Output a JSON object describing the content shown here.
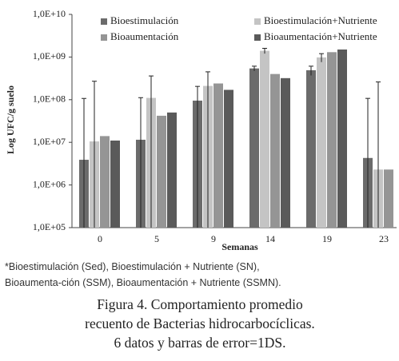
{
  "chart_data": {
    "type": "bar",
    "log_scale": true,
    "y_label": "Log UFC/g suelo",
    "x_label": "Semanas",
    "categories": [
      "0",
      "5",
      "9",
      "14",
      "19",
      "23"
    ],
    "series": [
      {
        "name": "Bioestimulación",
        "color": "#6b6b6b",
        "values": [
          3900000,
          11500000,
          95000000,
          540000000,
          490000000,
          4300000
        ],
        "errors": [
          103000000,
          100000000,
          110000000,
          70000000,
          120000000,
          103000000
        ]
      },
      {
        "name": "Bioestimulación+Nutriente",
        "color": "#c4c4c4",
        "values": [
          10500000,
          110000000,
          210000000,
          1400000000,
          980000000,
          2300000
        ],
        "errors": [
          260000000,
          250000000,
          240000000,
          200000000,
          220000000,
          258000000
        ]
      },
      {
        "name": "Bioaumentación",
        "color": "#959595",
        "values": [
          14000000,
          42000000,
          240000000,
          400000000,
          1300000000,
          2300000
        ],
        "errors": [
          null,
          null,
          null,
          null,
          null,
          null
        ]
      },
      {
        "name": "Bioaumentación+Nutriente",
        "color": "#5a5a5a",
        "values": [
          11000000,
          50000000,
          170000000,
          320000000,
          1500000000,
          null
        ],
        "errors": [
          null,
          null,
          null,
          null,
          null,
          null
        ]
      }
    ],
    "ylim": [
      100000,
      10000000000
    ],
    "yticks": [
      {
        "value": 100000,
        "label": "1,0E+05"
      },
      {
        "value": 1000000,
        "label": "1,0E+06"
      },
      {
        "value": 10000000,
        "label": "1,0E+07"
      },
      {
        "value": 100000000,
        "label": "1,0E+08"
      },
      {
        "value": 1000000000,
        "label": "1,0E+09"
      },
      {
        "value": 10000000000,
        "label": "1,0E+10"
      }
    ],
    "legend": "top",
    "note": "*Bioestimulación (Sed), Bioestimulación + Nutriente (SN), Bioaumenta-ción (SSM), Bioaumentación + Nutriente (SSMN).",
    "caption": [
      "Figura 4. Comportamiento promedio",
      "recuento de Bacterias hidrocarbocíclicas.",
      "6 datos y barras de error=1DS."
    ]
  }
}
